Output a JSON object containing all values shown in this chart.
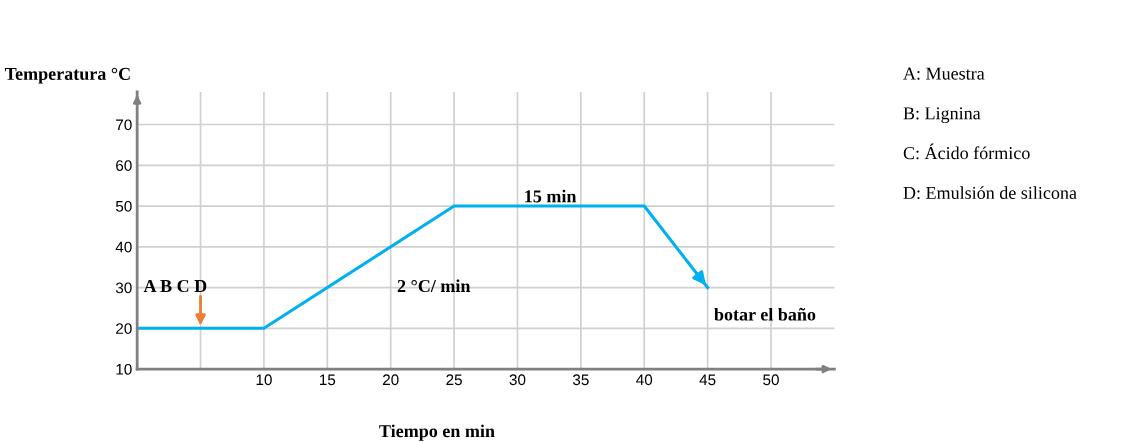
{
  "chart_data": {
    "type": "line",
    "xlabel": "Tiempo en min",
    "ylabel": "Temperatura °C",
    "x": [
      0,
      10,
      25,
      40,
      45
    ],
    "series": [
      {
        "color": "#00b0f0",
        "values": [
          20,
          20,
          50,
          50,
          30
        ]
      }
    ],
    "xlim": [
      0,
      55
    ],
    "ylim": [
      10,
      78
    ],
    "xticks": [
      {
        "value": 5,
        "label": null
      },
      10,
      15,
      20,
      25,
      30,
      35,
      40,
      45,
      50
    ],
    "yticks": [
      10,
      20,
      30,
      40,
      50,
      60,
      70
    ],
    "grid": true,
    "marker": "none",
    "line_style": "solid",
    "annotations": [
      {
        "text": "A B C D",
        "x": 5,
        "y": 20
      },
      "2 °C/ min",
      "15 min",
      "botar el baño",
      "A: Muestra",
      "B: Lignina",
      "C: Ácido fórmico",
      "D: Emulsión de silicona"
    ]
  }
}
